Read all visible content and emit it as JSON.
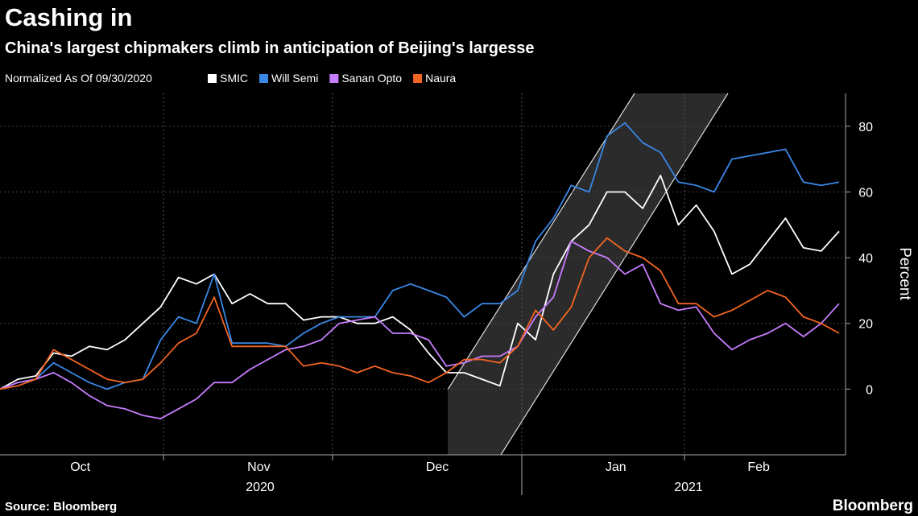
{
  "chart_data": {
    "type": "line",
    "title": "Cashing in",
    "subtitle": "China's largest chipmakers climb in anticipation of Beijing's largesse",
    "legend_title": "Normalized As Of 09/30/2020",
    "y_label": "Percent",
    "years": [
      "2020",
      "2021"
    ],
    "source": "Source: Bloomberg",
    "brand": "Bloomberg",
    "categories": [
      null,
      null,
      null,
      null,
      "Oct",
      null,
      null,
      null,
      null,
      null,
      null,
      null,
      null,
      null,
      "Nov",
      null,
      null,
      null,
      null,
      null,
      null,
      null,
      null,
      null,
      "Dec",
      null,
      null,
      null,
      null,
      null,
      null,
      null,
      null,
      null,
      "Jan",
      null,
      null,
      null,
      null,
      null,
      null,
      null,
      "Feb",
      null,
      null,
      null,
      null,
      null
    ],
    "series": [
      {
        "name": "SMIC",
        "color": "#ffffff",
        "values": [
          0,
          3,
          4,
          11,
          10,
          13,
          12,
          15,
          20,
          25,
          34,
          32,
          35,
          26,
          29,
          26,
          26,
          21,
          22,
          22,
          20,
          20,
          22,
          18,
          11,
          5,
          5,
          3,
          1,
          20,
          15,
          35,
          45,
          50,
          60,
          60,
          55,
          65,
          50,
          56,
          48,
          35,
          38,
          45,
          52,
          43,
          42,
          48
        ]
      },
      {
        "name": "Will Semi",
        "color": "#3a87e6",
        "values": [
          0,
          2,
          3,
          8,
          5,
          2,
          0,
          2,
          3,
          15,
          22,
          20,
          35,
          14,
          14,
          14,
          13,
          17,
          20,
          22,
          22,
          22,
          30,
          32,
          30,
          28,
          22,
          26,
          26,
          30,
          45,
          52,
          62,
          60,
          77,
          81,
          75,
          72,
          63,
          62,
          60,
          70,
          71,
          72,
          73,
          63,
          62,
          63
        ]
      },
      {
        "name": "Sanan Opto",
        "color": "#c77dff",
        "values": [
          0,
          2,
          3,
          5,
          2,
          -2,
          -5,
          -6,
          -8,
          -9,
          -6,
          -3,
          2,
          2,
          6,
          9,
          12,
          13,
          15,
          20,
          21,
          22,
          17,
          17,
          15,
          7,
          8,
          10,
          10,
          13,
          22,
          28,
          45,
          42,
          40,
          35,
          38,
          26,
          24,
          25,
          17,
          12,
          15,
          17,
          20,
          16,
          20,
          26
        ]
      },
      {
        "name": "Naura",
        "color": "#f26522",
        "values": [
          0,
          1,
          3,
          12,
          9,
          6,
          3,
          2,
          3,
          8,
          14,
          17,
          28,
          13,
          13,
          13,
          13,
          7,
          8,
          7,
          5,
          7,
          5,
          4,
          2,
          5,
          9,
          9,
          8,
          13,
          24,
          18,
          25,
          40,
          46,
          42,
          40,
          36,
          26,
          26,
          22,
          24,
          27,
          30,
          28,
          22,
          20,
          17
        ]
      }
    ],
    "ylim": [
      -20,
      90
    ],
    "yticks": [
      0,
      20,
      40,
      60,
      80
    ],
    "grid": true
  }
}
